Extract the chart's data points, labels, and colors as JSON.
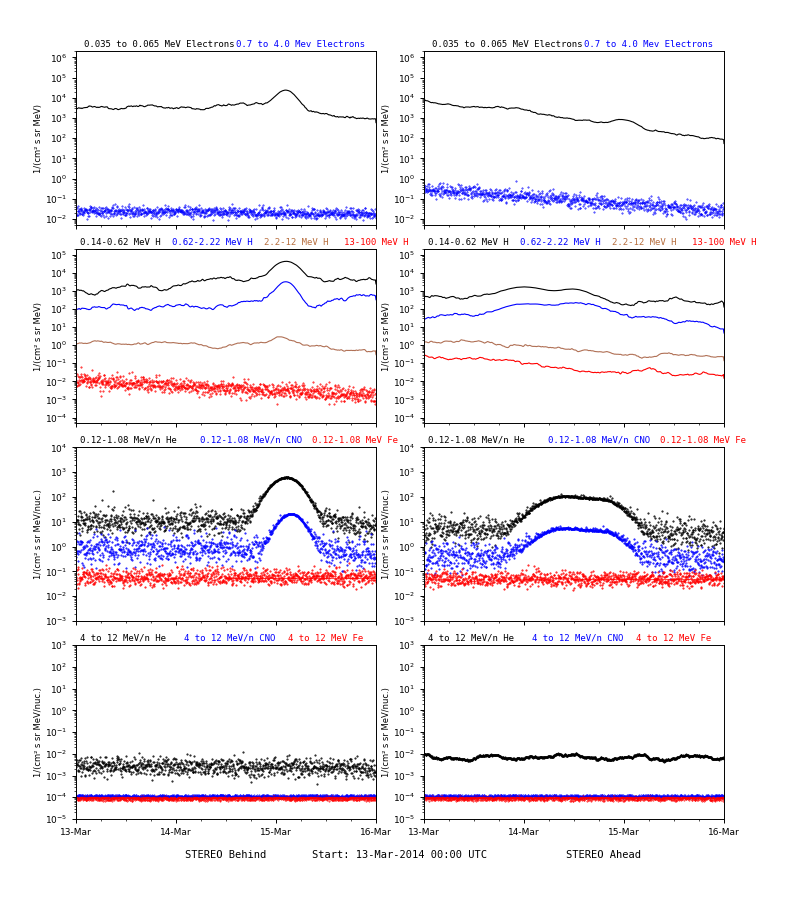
{
  "title_center": "Start: 13-Mar-2014 00:00 UTC",
  "xlabel_left": "STEREO Behind",
  "xlabel_right": "STEREO Ahead",
  "panel_titles_row0": [
    "0.035 to 0.065 MeV Electrons",
    "0.7 to 4.0 Mev Electrons"
  ],
  "panel_titles_row0_colors": [
    "black",
    "blue"
  ],
  "panel_titles_row1": [
    "0.14-0.62 MeV H",
    "0.62-2.22 MeV H",
    "2.2-12 MeV H",
    "13-100 MeV H"
  ],
  "panel_titles_row1_colors": [
    "black",
    "blue",
    "#b87040",
    "red"
  ],
  "panel_titles_row2": [
    "0.12-1.08 MeV/n He",
    "0.12-1.08 MeV/n CNO",
    "0.12-1.08 MeV Fe"
  ],
  "panel_titles_row2_colors": [
    "black",
    "blue",
    "red"
  ],
  "panel_titles_row3": [
    "4 to 12 MeV/n He",
    "4 to 12 MeV/n CNO",
    "4 to 12 MeV Fe"
  ],
  "panel_titles_row3_colors": [
    "black",
    "blue",
    "red"
  ],
  "ylabel_mev": "1/(cm² s sr MeV)",
  "ylabel_nuc": "1/(cm² s sr MeV/nuc.)",
  "ylim_row0": [
    0.005,
    2000000.0
  ],
  "ylim_row1": [
    5e-05,
    200000.0
  ],
  "ylim_row2": [
    0.001,
    10000.0
  ],
  "ylim_row3": [
    1e-05,
    1000.0
  ],
  "xticklabels": [
    "13-Mar",
    "14-Mar",
    "15-Mar",
    "16-Mar"
  ]
}
